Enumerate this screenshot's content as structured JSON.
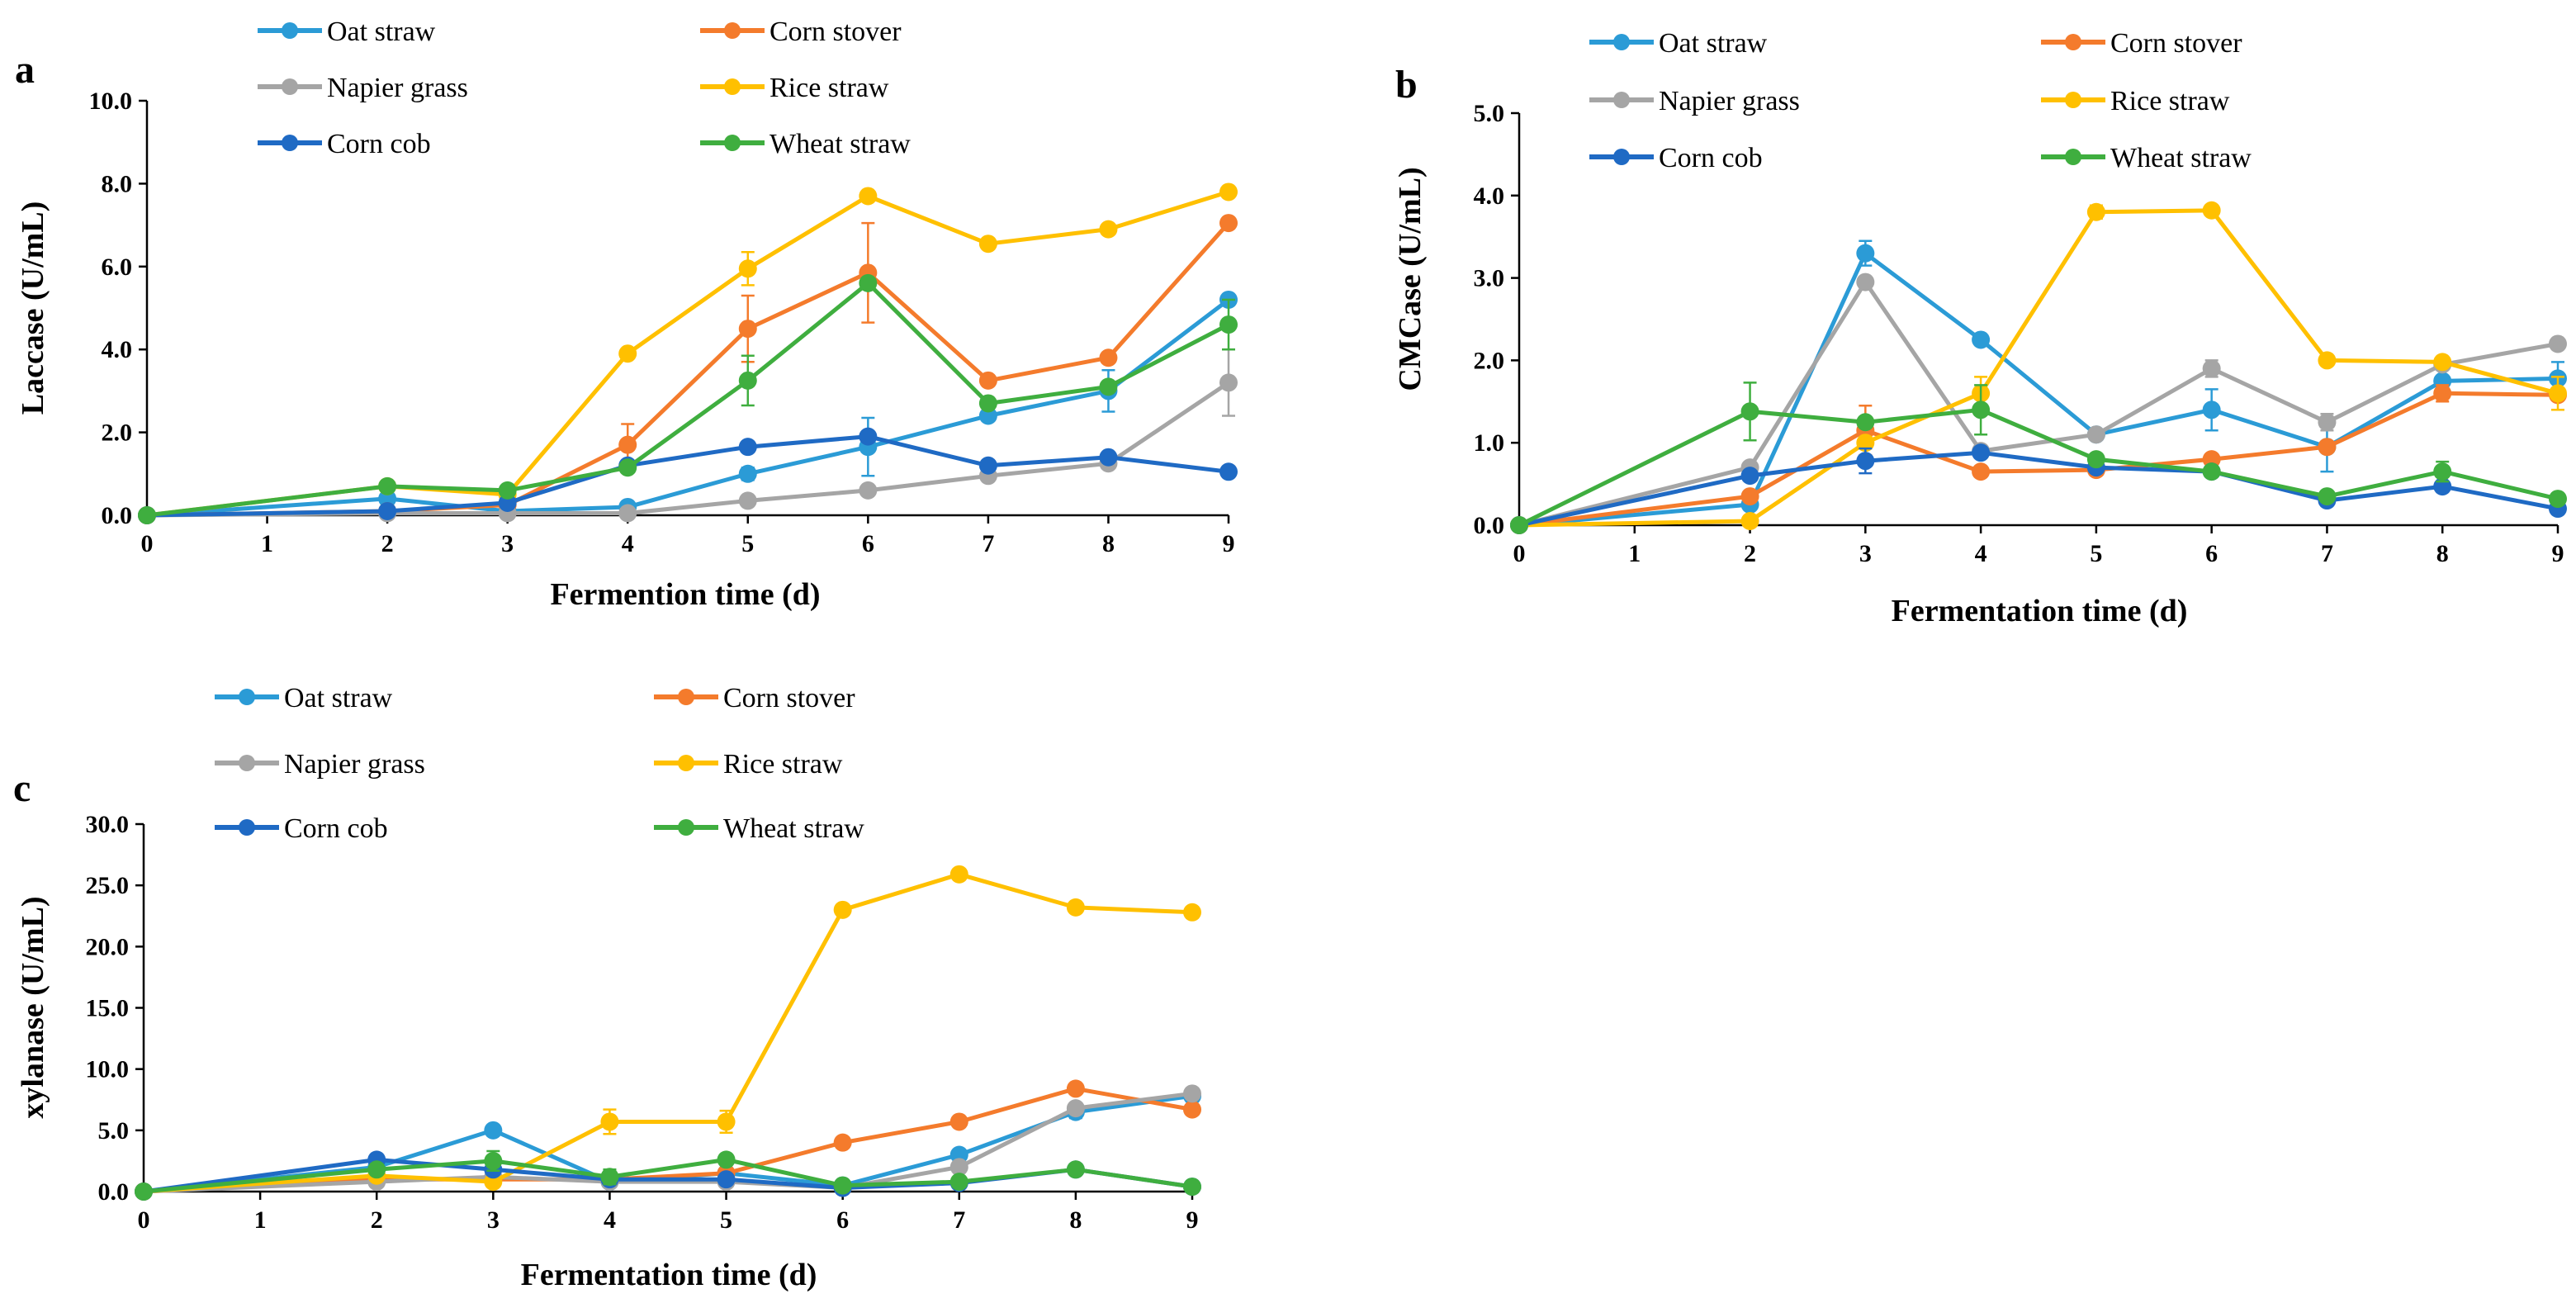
{
  "chart_data": [
    {
      "panel_label": "a",
      "type": "line",
      "xlabel": "Fermention time (d)",
      "ylabel": "Laccase (U/mL)",
      "x": [
        0,
        2,
        3,
        4,
        5,
        6,
        7,
        8,
        9
      ],
      "xticks": [
        "0",
        "1",
        "2",
        "3",
        "4",
        "5",
        "6",
        "7",
        "8",
        "9"
      ],
      "xlim": [
        0,
        9
      ],
      "ylim": [
        0,
        10
      ],
      "yticks": [
        "0.0",
        "2.0",
        "4.0",
        "6.0",
        "8.0",
        "10.0"
      ],
      "series": [
        {
          "name": "Oat straw",
          "color": "#2b9bd6",
          "values": [
            0.0,
            0.4,
            0.1,
            0.2,
            1.0,
            1.65,
            2.4,
            3.0,
            5.2
          ],
          "errors": [
            0,
            0.05,
            0.05,
            0.05,
            0.15,
            0.7,
            0.1,
            0.5,
            0.1
          ]
        },
        {
          "name": "Corn stover",
          "color": "#f47b2c",
          "values": [
            0.0,
            0.1,
            0.25,
            1.7,
            4.5,
            5.85,
            3.25,
            3.8,
            7.05
          ],
          "errors": [
            0,
            0.05,
            0.05,
            0.5,
            0.8,
            1.2,
            0.1,
            0.1,
            0.1
          ]
        },
        {
          "name": "Napier grass",
          "color": "#a5a5a5",
          "values": [
            0.0,
            0.05,
            0.05,
            0.05,
            0.35,
            0.6,
            0.95,
            1.25,
            3.2
          ],
          "errors": [
            0,
            0.05,
            0.05,
            0.05,
            0.05,
            0.05,
            0.05,
            0.05,
            0.8
          ]
        },
        {
          "name": "Rice straw",
          "color": "#ffc000",
          "values": [
            0.0,
            0.7,
            0.5,
            3.9,
            5.95,
            7.7,
            6.55,
            6.9,
            7.8
          ],
          "errors": [
            0,
            0.05,
            0.05,
            0.05,
            0.4,
            0.05,
            0.05,
            0.05,
            0.05
          ]
        },
        {
          "name": "Corn cob",
          "color": "#1f6ac4",
          "values": [
            0.0,
            0.1,
            0.3,
            1.2,
            1.65,
            1.9,
            1.2,
            1.4,
            1.05
          ],
          "errors": [
            0,
            0.05,
            0.05,
            0.05,
            0.05,
            0.05,
            0.05,
            0.05,
            0.05
          ]
        },
        {
          "name": "Wheat straw",
          "color": "#3fae3f",
          "values": [
            0.0,
            0.7,
            0.6,
            1.15,
            3.25,
            5.6,
            2.7,
            3.1,
            4.6
          ],
          "errors": [
            0,
            0.05,
            0.05,
            0.05,
            0.6,
            0.05,
            0.1,
            0.05,
            0.6
          ]
        }
      ]
    },
    {
      "panel_label": "b",
      "type": "line",
      "xlabel": "Fermentation time (d)",
      "ylabel": "CMCase (U/mL)",
      "x": [
        0,
        2,
        3,
        4,
        5,
        6,
        7,
        8,
        9
      ],
      "xticks": [
        "0",
        "1",
        "2",
        "3",
        "4",
        "5",
        "6",
        "7",
        "8",
        "9"
      ],
      "xlim": [
        0,
        9
      ],
      "ylim": [
        0,
        5
      ],
      "yticks": [
        "0.0",
        "1.0",
        "2.0",
        "3.0",
        "4.0",
        "5.0"
      ],
      "series": [
        {
          "name": "Oat straw",
          "color": "#2b9bd6",
          "values": [
            0.0,
            0.25,
            3.3,
            2.25,
            1.1,
            1.4,
            0.95,
            1.75,
            1.78
          ],
          "errors": [
            0,
            0.05,
            0.15,
            0.05,
            0.05,
            0.25,
            0.3,
            0.15,
            0.2
          ]
        },
        {
          "name": "Corn stover",
          "color": "#f47b2c",
          "values": [
            0.0,
            0.35,
            1.15,
            0.65,
            0.67,
            0.8,
            0.95,
            1.6,
            1.58
          ],
          "errors": [
            0,
            0.05,
            0.3,
            0.05,
            0.05,
            0.05,
            0.05,
            0.1,
            0.05
          ]
        },
        {
          "name": "Napier grass",
          "color": "#a5a5a5",
          "values": [
            0.0,
            0.7,
            2.95,
            0.9,
            1.1,
            1.9,
            1.25,
            1.95,
            2.2
          ],
          "errors": [
            0,
            0.05,
            0.05,
            0.05,
            0.05,
            0.1,
            0.1,
            0.05,
            0.05
          ]
        },
        {
          "name": "Rice straw",
          "color": "#ffc000",
          "values": [
            0.0,
            0.05,
            1.0,
            1.6,
            3.8,
            3.82,
            2.0,
            1.98,
            1.6
          ],
          "errors": [
            0,
            0.05,
            0.05,
            0.2,
            0.08,
            0.05,
            0.05,
            0.05,
            0.2
          ]
        },
        {
          "name": "Corn cob",
          "color": "#1f6ac4",
          "values": [
            0.0,
            0.6,
            0.78,
            0.88,
            0.7,
            0.65,
            0.3,
            0.47,
            0.2
          ],
          "errors": [
            0,
            0.05,
            0.15,
            0.05,
            0.05,
            0.05,
            0.05,
            0.05,
            0.05
          ]
        },
        {
          "name": "Wheat straw",
          "color": "#3fae3f",
          "values": [
            0.0,
            1.38,
            1.25,
            1.4,
            0.8,
            0.65,
            0.35,
            0.65,
            0.32
          ],
          "errors": [
            0,
            0.35,
            0.05,
            0.3,
            0.05,
            0.05,
            0.05,
            0.12,
            0.05
          ]
        }
      ]
    },
    {
      "panel_label": "c",
      "type": "line",
      "xlabel": "Fermentation time (d)",
      "ylabel": "xylanase (U/mL)",
      "x": [
        0,
        2,
        3,
        4,
        5,
        6,
        7,
        8,
        9
      ],
      "xticks": [
        "0",
        "1",
        "2",
        "3",
        "4",
        "5",
        "6",
        "7",
        "8",
        "9"
      ],
      "xlim": [
        0,
        9
      ],
      "ylim": [
        0,
        30
      ],
      "yticks": [
        "0.0",
        "5.0",
        "10.0",
        "15.0",
        "20.0",
        "25.0",
        "30.0"
      ],
      "series": [
        {
          "name": "Oat straw",
          "color": "#2b9bd6",
          "values": [
            0.0,
            2.0,
            5.0,
            0.8,
            1.5,
            0.5,
            3.0,
            6.5,
            7.8
          ],
          "errors": [
            0,
            0.2,
            0.2,
            0.2,
            0.2,
            0.2,
            0.2,
            0.5,
            0.3
          ]
        },
        {
          "name": "Corn stover",
          "color": "#f47b2c",
          "values": [
            0.0,
            1.0,
            1.0,
            1.0,
            1.5,
            4.0,
            5.7,
            8.4,
            6.7
          ],
          "errors": [
            0,
            0.2,
            0.2,
            0.2,
            0.2,
            0.2,
            0.2,
            0.2,
            0.3
          ]
        },
        {
          "name": "Napier grass",
          "color": "#a5a5a5",
          "values": [
            0.0,
            0.8,
            1.2,
            0.8,
            0.8,
            0.3,
            2.0,
            6.8,
            8.0
          ],
          "errors": [
            0,
            0.2,
            0.2,
            0.2,
            0.2,
            0.2,
            0.2,
            0.2,
            0.2
          ]
        },
        {
          "name": "Rice straw",
          "color": "#ffc000",
          "values": [
            0.0,
            1.3,
            0.8,
            5.7,
            5.7,
            23.0,
            25.9,
            23.2,
            22.8
          ],
          "errors": [
            0,
            0.2,
            0.2,
            1.0,
            0.9,
            0.3,
            0.3,
            0.3,
            0.3
          ]
        },
        {
          "name": "Corn cob",
          "color": "#1f6ac4",
          "values": [
            0.0,
            2.6,
            1.8,
            1.0,
            1.0,
            0.3,
            0.7,
            1.8,
            0.4
          ],
          "errors": [
            0,
            0.2,
            0.2,
            0.2,
            0.2,
            0.2,
            0.2,
            0.2,
            0.2
          ]
        },
        {
          "name": "Wheat straw",
          "color": "#3fae3f",
          "values": [
            0.0,
            1.8,
            2.5,
            1.2,
            2.6,
            0.5,
            0.8,
            1.8,
            0.4
          ],
          "errors": [
            0,
            0.2,
            0.8,
            0.6,
            0.3,
            0.2,
            0.2,
            0.2,
            0.2
          ]
        }
      ]
    }
  ]
}
